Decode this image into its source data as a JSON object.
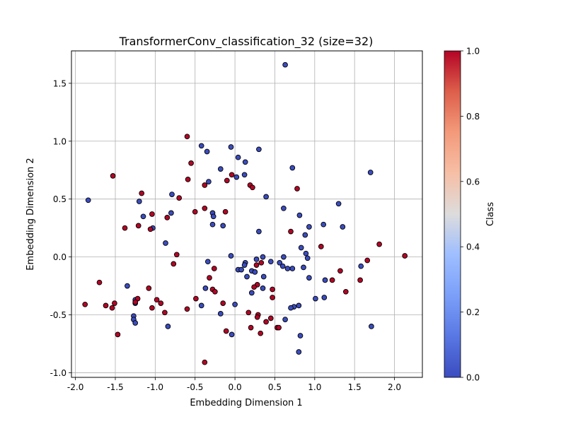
{
  "chart_data": {
    "type": "scatter",
    "title": "TransformerConv_classification_32 (size=32)",
    "xlabel": "Embedding Dimension 1",
    "ylabel": "Embedding Dimension 2",
    "xlim": [
      -2.05,
      2.35
    ],
    "ylim": [
      -1.04,
      1.78
    ],
    "xticks": [
      "-2.0",
      "-1.5",
      "-1.0",
      "-0.5",
      "0.0",
      "0.5",
      "1.0",
      "1.5",
      "2.0"
    ],
    "yticks": [
      "-1.0",
      "-0.5",
      "0.0",
      "0.5",
      "1.0",
      "1.5"
    ],
    "grid": true,
    "colorbar": {
      "label": "Class",
      "range": [
        0.0,
        1.0
      ],
      "ticks": [
        "0.0",
        "0.2",
        "0.4",
        "0.6",
        "0.8",
        "1.0"
      ],
      "colormap": "coolwarm"
    },
    "colors": {
      "class_0": "#3b4cc0",
      "class_1": "#b40426"
    },
    "points": [
      {
        "x": 0.63,
        "y": 1.66,
        "c": 0
      },
      {
        "x": -0.42,
        "y": 0.96,
        "c": 0
      },
      {
        "x": -0.35,
        "y": 0.91,
        "c": 0
      },
      {
        "x": -0.05,
        "y": 0.95,
        "c": 0
      },
      {
        "x": 0.3,
        "y": 0.93,
        "c": 0
      },
      {
        "x": 0.04,
        "y": 0.86,
        "c": 0
      },
      {
        "x": 0.13,
        "y": 0.82,
        "c": 0
      },
      {
        "x": 0.72,
        "y": 0.77,
        "c": 0
      },
      {
        "x": -0.18,
        "y": 0.76,
        "c": 0
      },
      {
        "x": 0.12,
        "y": 0.71,
        "c": 0
      },
      {
        "x": 0.02,
        "y": 0.69,
        "c": 0
      },
      {
        "x": 1.7,
        "y": 0.73,
        "c": 0
      },
      {
        "x": -0.33,
        "y": 0.65,
        "c": 0
      },
      {
        "x": -0.79,
        "y": 0.54,
        "c": 0
      },
      {
        "x": 0.39,
        "y": 0.52,
        "c": 0
      },
      {
        "x": -1.84,
        "y": 0.49,
        "c": 0
      },
      {
        "x": -1.2,
        "y": 0.48,
        "c": 0
      },
      {
        "x": 1.3,
        "y": 0.46,
        "c": 0
      },
      {
        "x": 0.61,
        "y": 0.42,
        "c": 0
      },
      {
        "x": -0.28,
        "y": 0.38,
        "c": 0
      },
      {
        "x": -0.8,
        "y": 0.38,
        "c": 0
      },
      {
        "x": 0.81,
        "y": 0.36,
        "c": 0
      },
      {
        "x": -1.15,
        "y": 0.35,
        "c": 0
      },
      {
        "x": -0.27,
        "y": 0.35,
        "c": 0
      },
      {
        "x": -0.28,
        "y": 0.28,
        "c": 0
      },
      {
        "x": -0.15,
        "y": 0.27,
        "c": 0
      },
      {
        "x": 1.11,
        "y": 0.28,
        "c": 0
      },
      {
        "x": 0.93,
        "y": 0.26,
        "c": 0
      },
      {
        "x": 1.35,
        "y": 0.26,
        "c": 0
      },
      {
        "x": -1.03,
        "y": 0.25,
        "c": 0
      },
      {
        "x": 0.3,
        "y": 0.22,
        "c": 0
      },
      {
        "x": 0.88,
        "y": 0.19,
        "c": 0
      },
      {
        "x": -0.87,
        "y": 0.12,
        "c": 0
      },
      {
        "x": 0.83,
        "y": 0.08,
        "c": 0
      },
      {
        "x": 0.89,
        "y": 0.03,
        "c": 0
      },
      {
        "x": -0.05,
        "y": 0.01,
        "c": 0
      },
      {
        "x": 0.35,
        "y": 0.0,
        "c": 0
      },
      {
        "x": 0.61,
        "y": 0.0,
        "c": 0
      },
      {
        "x": 0.91,
        "y": -0.01,
        "c": 0
      },
      {
        "x": 0.27,
        "y": -0.02,
        "c": 0
      },
      {
        "x": -0.34,
        "y": -0.04,
        "c": 0
      },
      {
        "x": 0.45,
        "y": -0.04,
        "c": 0
      },
      {
        "x": 0.56,
        "y": -0.05,
        "c": 0
      },
      {
        "x": 0.13,
        "y": -0.05,
        "c": 0
      },
      {
        "x": 0.12,
        "y": -0.07,
        "c": 0
      },
      {
        "x": 0.6,
        "y": -0.08,
        "c": 0
      },
      {
        "x": 0.86,
        "y": -0.09,
        "c": 0
      },
      {
        "x": 1.58,
        "y": -0.08,
        "c": 0
      },
      {
        "x": 0.66,
        "y": -0.1,
        "c": 0
      },
      {
        "x": 0.72,
        "y": -0.1,
        "c": 0
      },
      {
        "x": 0.04,
        "y": -0.11,
        "c": 0
      },
      {
        "x": 0.08,
        "y": -0.11,
        "c": 0
      },
      {
        "x": 0.21,
        "y": -0.12,
        "c": 0
      },
      {
        "x": 0.25,
        "y": -0.13,
        "c": 0
      },
      {
        "x": 0.15,
        "y": -0.17,
        "c": 0
      },
      {
        "x": 0.36,
        "y": -0.17,
        "c": 0
      },
      {
        "x": 0.93,
        "y": -0.18,
        "c": 0
      },
      {
        "x": 1.13,
        "y": -0.2,
        "c": 0
      },
      {
        "x": -1.35,
        "y": -0.25,
        "c": 0
      },
      {
        "x": -0.37,
        "y": -0.27,
        "c": 0
      },
      {
        "x": 0.35,
        "y": -0.27,
        "c": 0
      },
      {
        "x": 0.21,
        "y": -0.31,
        "c": 0
      },
      {
        "x": 1.01,
        "y": -0.36,
        "c": 0
      },
      {
        "x": 1.12,
        "y": -0.35,
        "c": 0
      },
      {
        "x": -1.25,
        "y": -0.37,
        "c": 0
      },
      {
        "x": -1.25,
        "y": -0.4,
        "c": 0
      },
      {
        "x": 0.0,
        "y": -0.41,
        "c": 0
      },
      {
        "x": 0.8,
        "y": -0.42,
        "c": 0
      },
      {
        "x": -0.42,
        "y": -0.42,
        "c": 0
      },
      {
        "x": 0.74,
        "y": -0.43,
        "c": 0
      },
      {
        "x": 0.7,
        "y": -0.44,
        "c": 0
      },
      {
        "x": -0.18,
        "y": -0.49,
        "c": 0
      },
      {
        "x": -1.27,
        "y": -0.51,
        "c": 0
      },
      {
        "x": -1.27,
        "y": -0.54,
        "c": 0
      },
      {
        "x": 0.63,
        "y": -0.54,
        "c": 0
      },
      {
        "x": -1.25,
        "y": -0.57,
        "c": 0
      },
      {
        "x": -0.84,
        "y": -0.6,
        "c": 0
      },
      {
        "x": 1.71,
        "y": -0.6,
        "c": 0
      },
      {
        "x": -0.04,
        "y": -0.67,
        "c": 0
      },
      {
        "x": 0.82,
        "y": -0.68,
        "c": 0
      },
      {
        "x": 0.8,
        "y": -0.82,
        "c": 0
      },
      {
        "x": -0.6,
        "y": 1.04,
        "c": 1
      },
      {
        "x": -0.55,
        "y": 0.81,
        "c": 1
      },
      {
        "x": -1.53,
        "y": 0.7,
        "c": 1
      },
      {
        "x": -0.04,
        "y": 0.71,
        "c": 1
      },
      {
        "x": -0.59,
        "y": 0.67,
        "c": 1
      },
      {
        "x": -0.1,
        "y": 0.66,
        "c": 1
      },
      {
        "x": 0.19,
        "y": 0.62,
        "c": 1
      },
      {
        "x": -0.38,
        "y": 0.62,
        "c": 1
      },
      {
        "x": 0.22,
        "y": 0.6,
        "c": 1
      },
      {
        "x": 0.78,
        "y": 0.59,
        "c": 1
      },
      {
        "x": -1.17,
        "y": 0.55,
        "c": 1
      },
      {
        "x": -0.7,
        "y": 0.51,
        "c": 1
      },
      {
        "x": -0.38,
        "y": 0.42,
        "c": 1
      },
      {
        "x": -0.5,
        "y": 0.39,
        "c": 1
      },
      {
        "x": -0.12,
        "y": 0.39,
        "c": 1
      },
      {
        "x": -1.04,
        "y": 0.37,
        "c": 1
      },
      {
        "x": -0.85,
        "y": 0.34,
        "c": 1
      },
      {
        "x": -1.21,
        "y": 0.27,
        "c": 1
      },
      {
        "x": -1.38,
        "y": 0.25,
        "c": 1
      },
      {
        "x": -1.06,
        "y": 0.24,
        "c": 1
      },
      {
        "x": 0.7,
        "y": 0.22,
        "c": 1
      },
      {
        "x": 1.81,
        "y": 0.11,
        "c": 1
      },
      {
        "x": 1.08,
        "y": 0.09,
        "c": 1
      },
      {
        "x": -0.73,
        "y": 0.02,
        "c": 1
      },
      {
        "x": 2.13,
        "y": 0.01,
        "c": 1
      },
      {
        "x": 1.66,
        "y": -0.03,
        "c": 1
      },
      {
        "x": 0.33,
        "y": -0.05,
        "c": 1
      },
      {
        "x": -0.77,
        "y": -0.06,
        "c": 1
      },
      {
        "x": 0.27,
        "y": -0.07,
        "c": 1
      },
      {
        "x": -0.26,
        "y": -0.1,
        "c": 1
      },
      {
        "x": 1.32,
        "y": -0.12,
        "c": 1
      },
      {
        "x": -0.32,
        "y": -0.18,
        "c": 1
      },
      {
        "x": 1.22,
        "y": -0.2,
        "c": 1
      },
      {
        "x": 1.57,
        "y": -0.2,
        "c": 1
      },
      {
        "x": -1.7,
        "y": -0.22,
        "c": 1
      },
      {
        "x": 0.28,
        "y": -0.24,
        "c": 1
      },
      {
        "x": 0.24,
        "y": -0.26,
        "c": 1
      },
      {
        "x": -1.08,
        "y": -0.27,
        "c": 1
      },
      {
        "x": -0.28,
        "y": -0.28,
        "c": 1
      },
      {
        "x": 0.47,
        "y": -0.28,
        "c": 1
      },
      {
        "x": -0.25,
        "y": -0.3,
        "c": 1
      },
      {
        "x": 1.39,
        "y": -0.3,
        "c": 1
      },
      {
        "x": 0.47,
        "y": -0.35,
        "c": 1
      },
      {
        "x": -1.22,
        "y": -0.36,
        "c": 1
      },
      {
        "x": -0.49,
        "y": -0.36,
        "c": 1
      },
      {
        "x": -0.98,
        "y": -0.37,
        "c": 1
      },
      {
        "x": -1.25,
        "y": -0.39,
        "c": 1
      },
      {
        "x": -0.93,
        "y": -0.4,
        "c": 1
      },
      {
        "x": -1.51,
        "y": -0.4,
        "c": 1
      },
      {
        "x": -0.15,
        "y": -0.4,
        "c": 1
      },
      {
        "x": -1.88,
        "y": -0.41,
        "c": 1
      },
      {
        "x": -1.62,
        "y": -0.42,
        "c": 1
      },
      {
        "x": -1.04,
        "y": -0.44,
        "c": 1
      },
      {
        "x": -1.54,
        "y": -0.44,
        "c": 1
      },
      {
        "x": -0.6,
        "y": -0.45,
        "c": 1
      },
      {
        "x": -0.88,
        "y": -0.48,
        "c": 1
      },
      {
        "x": 0.17,
        "y": -0.48,
        "c": 1
      },
      {
        "x": 0.29,
        "y": -0.5,
        "c": 1
      },
      {
        "x": 0.28,
        "y": -0.52,
        "c": 1
      },
      {
        "x": 0.45,
        "y": -0.53,
        "c": 1
      },
      {
        "x": 0.39,
        "y": -0.56,
        "c": 1
      },
      {
        "x": 0.53,
        "y": -0.61,
        "c": 1
      },
      {
        "x": 0.2,
        "y": -0.61,
        "c": 1
      },
      {
        "x": 0.55,
        "y": -0.61,
        "c": 1
      },
      {
        "x": -0.11,
        "y": -0.64,
        "c": 1
      },
      {
        "x": 0.32,
        "y": -0.66,
        "c": 1
      },
      {
        "x": -1.47,
        "y": -0.67,
        "c": 1
      },
      {
        "x": -0.38,
        "y": -0.91,
        "c": 1
      }
    ]
  }
}
